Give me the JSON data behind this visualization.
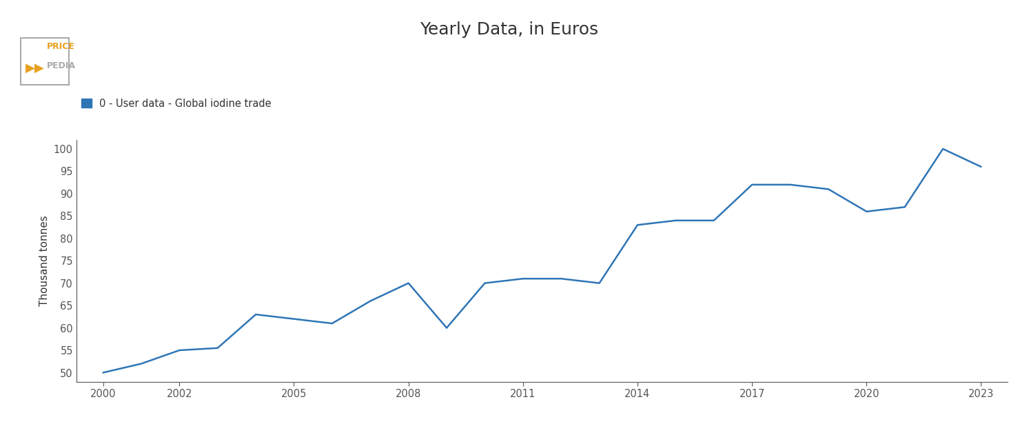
{
  "title": "Yearly Data, in Euros",
  "ylabel": "Thousand tonnes",
  "legend_label": "0 - User data - Global iodine trade",
  "line_color": "#2e75b6",
  "years": [
    2000,
    2001,
    2002,
    2003,
    2004,
    2005,
    2006,
    2007,
    2008,
    2009,
    2010,
    2011,
    2012,
    2013,
    2014,
    2015,
    2016,
    2017,
    2018,
    2019,
    2020,
    2021,
    2022,
    2023
  ],
  "values": [
    50,
    52,
    55,
    55.5,
    63,
    62,
    61,
    66,
    70,
    60,
    70,
    71,
    71,
    70,
    83,
    84,
    84,
    92,
    92,
    91,
    86,
    87,
    100,
    96
  ],
  "ylim": [
    48,
    102
  ],
  "yticks": [
    50,
    55,
    60,
    65,
    70,
    75,
    80,
    85,
    90,
    95,
    100
  ],
  "xticks": [
    2000,
    2002,
    2005,
    2008,
    2011,
    2014,
    2017,
    2020,
    2023
  ],
  "xlim": [
    1999.3,
    2023.7
  ],
  "background_color": "#ffffff",
  "legend_box_color": "#2e75b6",
  "title_fontsize": 18,
  "ylabel_fontsize": 11,
  "tick_fontsize": 10.5,
  "legend_fontsize": 10.5,
  "line_width": 1.8,
  "logo_text_price": "PRICE",
  "logo_text_pedia": "PEDIA"
}
